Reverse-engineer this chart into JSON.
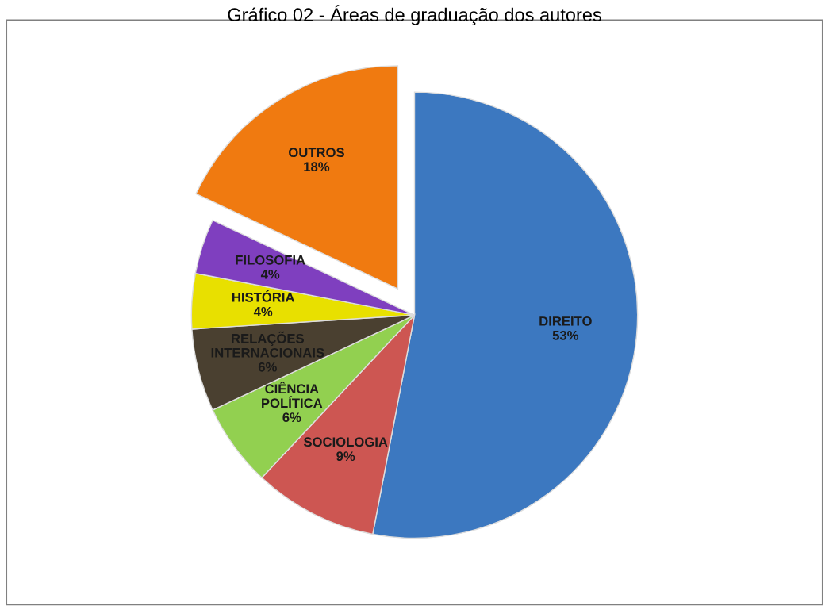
{
  "chart_data": {
    "type": "pie",
    "title": "Gráfico 02 - Áreas de graduação dos autores",
    "categories": [
      "DIREITO",
      "SOCIOLOGIA",
      "CIÊNCIA POLÍTICA",
      "RELAÇÕES INTERNACIONAIS",
      "HISTÓRIA",
      "FILOSOFIA",
      "OUTROS"
    ],
    "values": [
      53,
      9,
      6,
      6,
      4,
      4,
      18
    ],
    "colors": [
      "#3c78c0",
      "#cd5652",
      "#92d050",
      "#4a4030",
      "#e8e000",
      "#7f3fbf",
      "#f07a10"
    ],
    "value_labels": [
      "53%",
      "9%",
      "6%",
      "6%",
      "4%",
      "4%",
      "18%"
    ],
    "legend": false
  }
}
